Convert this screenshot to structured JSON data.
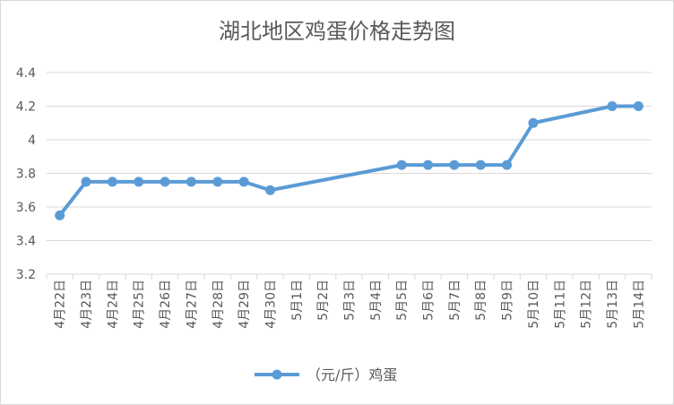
{
  "chart_data": {
    "type": "line",
    "title": "湖北地区鸡蛋价格走势图",
    "xlabel": "",
    "ylabel": "",
    "ylim": [
      3.2,
      4.4
    ],
    "yticks": [
      "3.2",
      "3.4",
      "3.6",
      "3.8",
      "4",
      "4.2",
      "4.4"
    ],
    "grid": true,
    "legend_position": "bottom",
    "categories": [
      "4月22日",
      "4月23日",
      "4月24日",
      "4月25日",
      "4月26日",
      "4月27日",
      "4月28日",
      "4月29日",
      "4月30日",
      "5月1日",
      "5月2日",
      "5月3日",
      "5月4日",
      "5月5日",
      "5月6日",
      "5月7日",
      "5月8日",
      "5月9日",
      "5月10日",
      "5月11日",
      "5月12日",
      "5月13日",
      "5月14日"
    ],
    "series": [
      {
        "name": "（元/斤）鸡蛋",
        "color": "#5b9bd5",
        "values": [
          3.55,
          3.75,
          3.75,
          3.75,
          3.75,
          3.75,
          3.75,
          3.75,
          3.7,
          null,
          null,
          null,
          null,
          3.85,
          3.85,
          3.85,
          3.85,
          3.85,
          4.1,
          null,
          null,
          4.2,
          4.2
        ]
      }
    ]
  }
}
